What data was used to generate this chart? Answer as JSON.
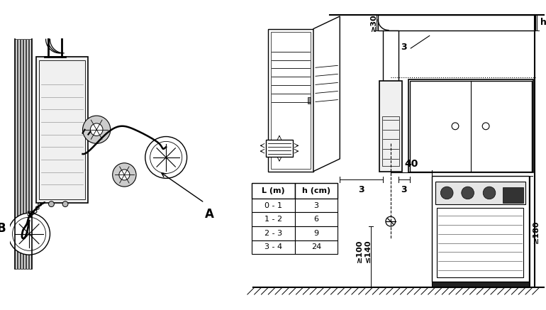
{
  "bg_color": "#ffffff",
  "line_color": "#000000",
  "table_headers": [
    "L (m)",
    "h (cm)"
  ],
  "table_rows": [
    [
      "0 - 1",
      "3"
    ],
    [
      "1 - 2",
      "6"
    ],
    [
      "2 - 3",
      "9"
    ],
    [
      "3 - 4",
      "24"
    ]
  ],
  "label_h": "h",
  "label_B": "B",
  "label_A": "A",
  "label_30": "≥30",
  "label_3": "3",
  "label_40": "40",
  "label_100": "≥100",
  "label_140": "≤140",
  "label_180": "≥180"
}
